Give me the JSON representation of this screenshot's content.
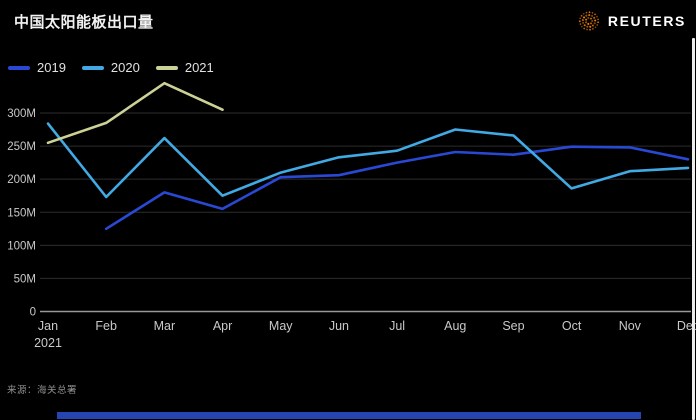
{
  "header": {
    "title": "中国太阳能板出口量",
    "brand": "REUTERS",
    "brand_dot_color": "#f07d00"
  },
  "chart_data": {
    "type": "line",
    "title": "中国太阳能板出口量",
    "x": [
      "Jan",
      "Feb",
      "Mar",
      "Apr",
      "May",
      "Jun",
      "Jul",
      "Aug",
      "Sep",
      "Oct",
      "Nov",
      "Dec"
    ],
    "x_axis_note": {
      "month_index": 0,
      "label": "2021"
    },
    "unit": "M",
    "ylim": [
      0,
      350
    ],
    "yticks": [
      0,
      50,
      100,
      150,
      200,
      250,
      300
    ],
    "ytick_labels": [
      "0",
      "50M",
      "100M",
      "150M",
      "200M",
      "250M",
      "300M"
    ],
    "grid": true,
    "legend_position": "top-left",
    "series": [
      {
        "name": "2019",
        "color": "#2949d5",
        "values": [
          null,
          125,
          180,
          155,
          203,
          206,
          225,
          241,
          237,
          249,
          248,
          230
        ]
      },
      {
        "name": "2020",
        "color": "#41aae4",
        "values": [
          284,
          173,
          262,
          175,
          210,
          233,
          243,
          275,
          266,
          186,
          212,
          217
        ]
      },
      {
        "name": "2021",
        "color": "#ccd196",
        "values": [
          255,
          285,
          345,
          305,
          null,
          null,
          null,
          null,
          null,
          null,
          null,
          null
        ]
      }
    ],
    "colors": {
      "gridline": "#2d2d2d",
      "baseline": "#989898",
      "tick_label": "#c9c9c9"
    }
  },
  "footer": {
    "source": "来源：海关总署"
  },
  "decor": {
    "bottom_bar_color": "#2545b0"
  }
}
